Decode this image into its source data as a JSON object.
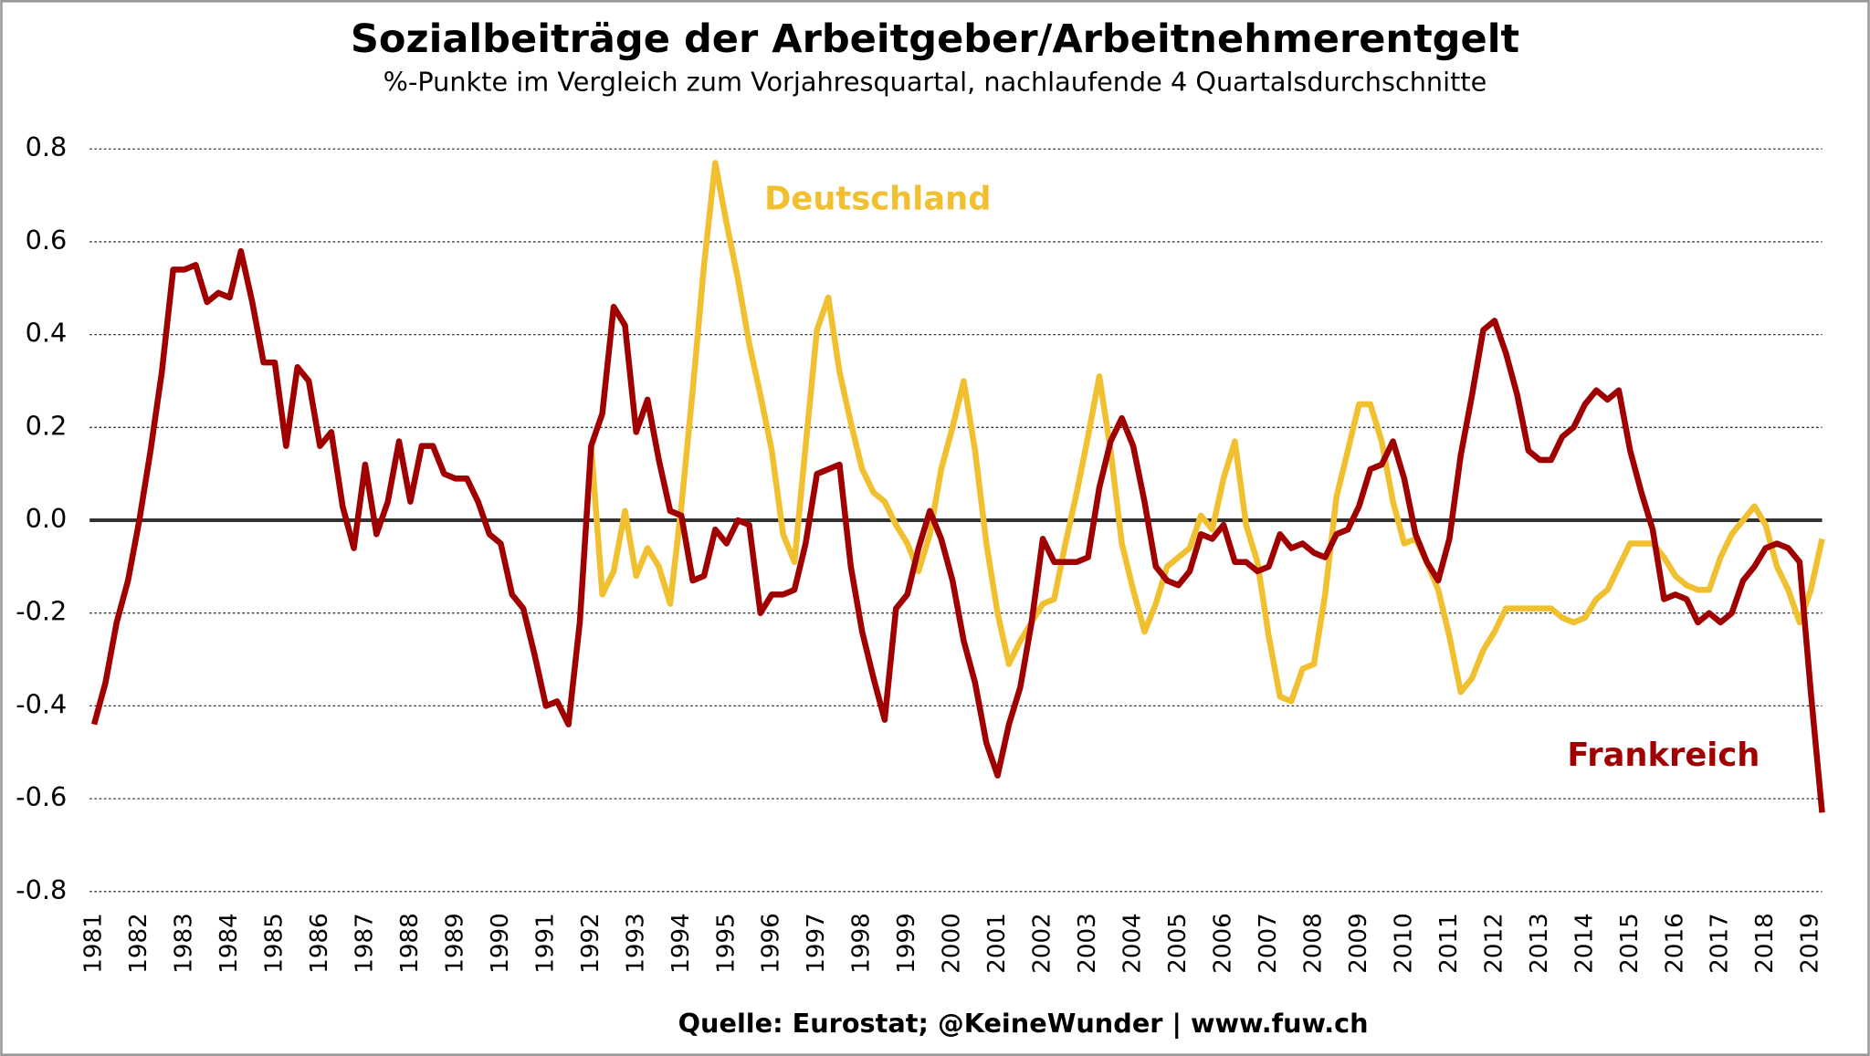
{
  "chart_data": {
    "type": "line",
    "title": "Sozialbeiträge der Arbeitgeber/Arbeitnehmerentgelt",
    "subtitle": "%-Punkte im Vergleich zum Vorjahresquartal, nachlaufende 4 Quartalsdurchschnitte",
    "source": "Quelle: Eurostat; @KeineWunder | www.fuw.ch",
    "annotations": [
      "Deutschland",
      "Frankreich"
    ],
    "x": [
      1981,
      1981.25,
      1981.5,
      1981.75,
      1982,
      1982.25,
      1982.5,
      1982.75,
      1983,
      1983.25,
      1983.5,
      1983.75,
      1984,
      1984.25,
      1984.5,
      1984.75,
      1985,
      1985.25,
      1985.5,
      1985.75,
      1986,
      1986.25,
      1986.5,
      1986.75,
      1987,
      1987.25,
      1987.5,
      1987.75,
      1988,
      1988.25,
      1988.5,
      1988.75,
      1989,
      1989.25,
      1989.5,
      1989.75,
      1990,
      1990.25,
      1990.5,
      1990.75,
      1991,
      1991.25,
      1991.5,
      1991.75,
      1992,
      1992.25,
      1992.5,
      1992.75,
      1993,
      1993.25,
      1993.5,
      1993.75,
      1994,
      1994.25,
      1994.5,
      1994.75,
      1995,
      1995.25,
      1995.5,
      1995.75,
      1996,
      1996.25,
      1996.5,
      1996.75,
      1997,
      1997.25,
      1997.5,
      1997.75,
      1998,
      1998.25,
      1998.5,
      1998.75,
      1999,
      1999.25,
      1999.5,
      1999.75,
      2000,
      2000.25,
      2000.5,
      2000.75,
      2001,
      2001.25,
      2001.5,
      2001.75,
      2002,
      2002.25,
      2002.5,
      2002.75,
      2003,
      2003.25,
      2003.5,
      2003.75,
      2004,
      2004.25,
      2004.5,
      2004.75,
      2005,
      2005.25,
      2005.5,
      2005.75,
      2006,
      2006.25,
      2006.5,
      2006.75,
      2007,
      2007.25,
      2007.5,
      2007.75,
      2008,
      2008.25,
      2008.5,
      2008.75,
      2009,
      2009.25,
      2009.5,
      2009.75,
      2010,
      2010.25,
      2010.5,
      2010.75,
      2011,
      2011.25,
      2011.5,
      2011.75,
      2012,
      2012.25,
      2012.5,
      2012.75,
      2013,
      2013.25,
      2013.5,
      2013.75,
      2014,
      2014.25,
      2014.5,
      2014.75,
      2015,
      2015.25,
      2015.5,
      2015.75,
      2016,
      2016.25,
      2016.5,
      2016.75,
      2017,
      2017.25,
      2017.5,
      2017.75,
      2018,
      2018.25,
      2018.5,
      2018.75,
      2019,
      2019.25
    ],
    "series": [
      {
        "name": "Deutschland",
        "color": "#f0c030",
        "values": [
          null,
          null,
          null,
          null,
          null,
          null,
          null,
          null,
          null,
          null,
          null,
          null,
          null,
          null,
          null,
          null,
          null,
          null,
          null,
          null,
          null,
          null,
          null,
          null,
          null,
          null,
          null,
          null,
          null,
          null,
          null,
          null,
          null,
          null,
          null,
          null,
          null,
          null,
          null,
          null,
          null,
          null,
          null,
          null,
          0.16,
          -0.16,
          -0.11,
          0.02,
          -0.12,
          -0.06,
          -0.1,
          -0.18,
          0.03,
          0.28,
          0.55,
          0.77,
          0.64,
          0.52,
          0.38,
          0.27,
          0.15,
          -0.03,
          -0.09,
          0.16,
          0.41,
          0.48,
          0.32,
          0.21,
          0.11,
          0.06,
          0.04,
          -0.01,
          -0.05,
          -0.11,
          -0.03,
          0.11,
          0.2,
          0.3,
          0.15,
          -0.05,
          -0.2,
          -0.31,
          -0.26,
          -0.22,
          -0.18,
          -0.17,
          -0.05,
          0.06,
          0.18,
          0.31,
          0.15,
          -0.05,
          -0.15,
          -0.24,
          -0.18,
          -0.1,
          -0.08,
          -0.06,
          0.01,
          -0.02,
          0.09,
          0.17,
          -0.01,
          -0.09,
          -0.25,
          -0.38,
          -0.39,
          -0.32,
          -0.31,
          -0.16,
          0.05,
          0.15,
          0.25,
          0.25,
          0.17,
          0.04,
          -0.05,
          -0.04,
          -0.09,
          -0.15,
          -0.25,
          -0.37,
          -0.34,
          -0.28,
          -0.24,
          -0.19,
          -0.19,
          -0.19,
          -0.19,
          -0.19,
          -0.21,
          -0.22,
          -0.21,
          -0.17,
          -0.15,
          -0.1,
          -0.05,
          -0.05,
          -0.05,
          -0.08,
          -0.12,
          -0.14,
          -0.15,
          -0.15,
          -0.08,
          -0.03,
          0.0,
          0.03,
          -0.01,
          -0.1,
          -0.15,
          -0.22,
          -0.15,
          -0.04
        ]
      },
      {
        "name": "Frankreich",
        "color": "#a00000",
        "values": [
          -0.44,
          -0.35,
          -0.22,
          -0.13,
          0.0,
          0.15,
          0.32,
          0.54,
          0.54,
          0.55,
          0.47,
          0.49,
          0.48,
          0.58,
          0.47,
          0.34,
          0.34,
          0.16,
          0.33,
          0.3,
          0.16,
          0.19,
          0.03,
          -0.06,
          0.12,
          -0.03,
          0.04,
          0.17,
          0.04,
          0.16,
          0.16,
          0.1,
          0.09,
          0.09,
          0.04,
          -0.03,
          -0.05,
          -0.16,
          -0.19,
          -0.29,
          -0.4,
          -0.39,
          -0.44,
          -0.22,
          0.16,
          0.23,
          0.46,
          0.42,
          0.19,
          0.26,
          0.13,
          0.02,
          0.01,
          -0.13,
          -0.12,
          -0.02,
          -0.05,
          0.0,
          -0.01,
          -0.2,
          -0.16,
          -0.16,
          -0.15,
          -0.05,
          0.1,
          0.11,
          0.12,
          -0.1,
          -0.24,
          -0.34,
          -0.43,
          -0.19,
          -0.16,
          -0.06,
          0.02,
          -0.04,
          -0.13,
          -0.26,
          -0.35,
          -0.48,
          -0.55,
          -0.44,
          -0.36,
          -0.22,
          -0.04,
          -0.09,
          -0.09,
          -0.09,
          -0.08,
          0.07,
          0.17,
          0.22,
          0.16,
          0.04,
          -0.1,
          -0.13,
          -0.14,
          -0.11,
          -0.03,
          -0.04,
          -0.01,
          -0.09,
          -0.09,
          -0.11,
          -0.1,
          -0.03,
          -0.06,
          -0.05,
          -0.07,
          -0.08,
          -0.03,
          -0.02,
          0.03,
          0.11,
          0.12,
          0.17,
          0.09,
          -0.03,
          -0.09,
          -0.13,
          -0.04,
          0.14,
          0.27,
          0.41,
          0.43,
          0.36,
          0.27,
          0.15,
          0.13,
          0.13,
          0.18,
          0.2,
          0.25,
          0.28,
          0.26,
          0.28,
          0.15,
          0.06,
          -0.02,
          -0.17,
          -0.16,
          -0.17,
          -0.22,
          -0.2,
          -0.22,
          -0.2,
          -0.13,
          -0.1,
          -0.06,
          -0.05,
          -0.06,
          -0.09,
          -0.37,
          -0.63
        ]
      }
    ],
    "xlim": [
      1980.9,
      2019.25
    ],
    "xticks": [
      1981,
      1982,
      1983,
      1984,
      1985,
      1986,
      1987,
      1988,
      1989,
      1990,
      1991,
      1992,
      1993,
      1994,
      1995,
      1996,
      1997,
      1998,
      1999,
      2000,
      2001,
      2002,
      2003,
      2004,
      2005,
      2006,
      2007,
      2008,
      2009,
      2010,
      2011,
      2012,
      2013,
      2014,
      2015,
      2016,
      2017,
      2018,
      2019
    ],
    "ylim": [
      -0.8,
      0.8
    ],
    "yticks": [
      0.8,
      0.6,
      0.4,
      0.2,
      {
        "value": 0,
        "label": "0.0"
      },
      -0.2,
      -0.4,
      -0.6,
      -0.8
    ],
    "grid": true
  }
}
